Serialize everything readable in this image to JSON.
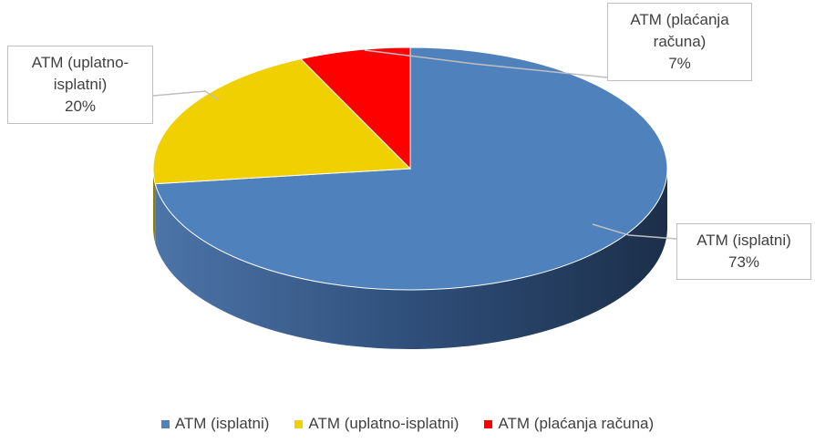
{
  "chart_data": {
    "type": "pie",
    "categories": [
      "ATM (isplatni)",
      "ATM (uplatno-isplatni)",
      "ATM (plaćanja računa)"
    ],
    "values": [
      73,
      20,
      7
    ],
    "value_labels": [
      "73%",
      "20%",
      "7%"
    ],
    "colors": [
      "#4f81bd",
      "#f0d000",
      "#ff0000"
    ],
    "legend": "bottom"
  }
}
